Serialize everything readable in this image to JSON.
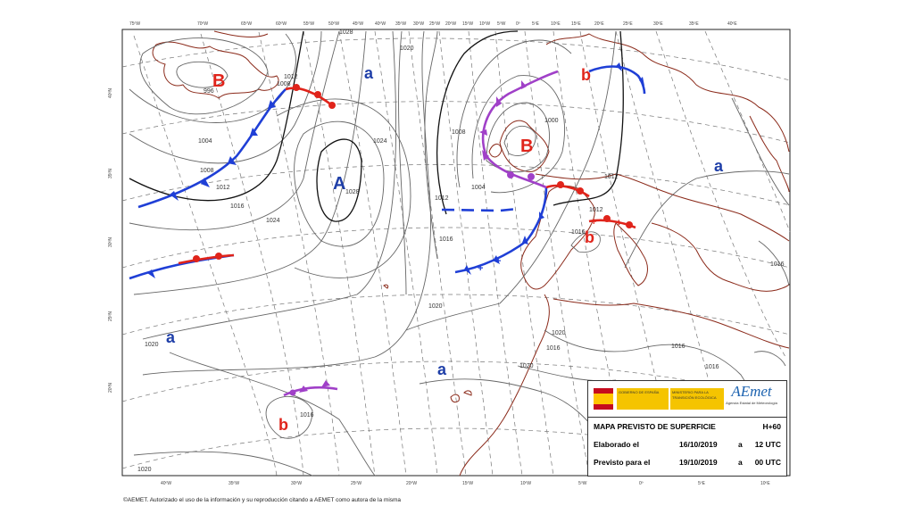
{
  "map": {
    "pressure_labels": [
      {
        "text": "B",
        "color": "#e0241b"
      },
      {
        "text": "a",
        "color": "#1f3fa8"
      },
      {
        "text": "A",
        "color": "#1f3fa8"
      },
      {
        "text": "B",
        "color": "#e0241b"
      },
      {
        "text": "b",
        "color": "#e0241b"
      },
      {
        "text": "a",
        "color": "#1f3fa8"
      },
      {
        "text": "b",
        "color": "#e0241b"
      },
      {
        "text": "a",
        "color": "#1f3fa8"
      },
      {
        "text": "a",
        "color": "#1f3fa8"
      },
      {
        "text": "b",
        "color": "#e0241b"
      }
    ],
    "isobar_labels": [
      "1012",
      "1008",
      "996",
      "1004",
      "1008",
      "1012",
      "1016",
      "1024",
      "1028",
      "1020",
      "1024",
      "1012",
      "1016",
      "1020",
      "1008",
      "1004",
      "1000",
      "1012",
      "1012",
      "1016",
      "1020",
      "1016",
      "1016",
      "1020",
      "1016",
      "1016",
      "1020",
      "1016",
      "1020",
      "1028"
    ],
    "longitude_labels": [
      "75ºW",
      "70ºW",
      "65ºW",
      "60ºW",
      "55ºW",
      "50ºW",
      "45ºW",
      "40ºW",
      "35ºW",
      "30ºW",
      "25ºW",
      "20ºW",
      "15ºW",
      "10ºW",
      "5ºW",
      "0º",
      "5ºE",
      "10ºE",
      "15ºE",
      "20ºE",
      "25ºE",
      "30ºE",
      "35ºE",
      "40ºE"
    ],
    "bottom_labels": [
      "40ºW",
      "35ºW",
      "30ºW",
      "25ºW",
      "20ºW",
      "15ºW",
      "10ºW",
      "5ºW",
      "0º",
      "5ºE",
      "10ºE"
    ],
    "latitude_labels": [
      "40ºN",
      "35ºN",
      "30ºN",
      "25ºN",
      "20ºN"
    ],
    "colors": {
      "cold_front": "#1f3fd6",
      "warm_front": "#e0241b",
      "occluded_front": "#a040c8",
      "coast": "#8b2a1a"
    }
  },
  "legend": {
    "gov_text": "GOBIERNO DE ESPAÑA",
    "ministry_text": "MINISTERIO PARA LA TRANSICIÓN ECOLÓGICA",
    "brand": "AEmet",
    "brand_sub": "Agencia Estatal de Meteorología",
    "title": "MAPA PREVISTO DE SUPERFICIE",
    "horizon": "H+60",
    "made_label": "Elaborado el",
    "made_date": "16/10/2019",
    "made_sep": "a",
    "made_time": "12 UTC",
    "valid_label": "Previsto para el",
    "valid_date": "19/10/2019",
    "valid_sep": "a",
    "valid_time": "00 UTC"
  },
  "footer": "©AEMET. Autorizado el uso de la información y su reproducción citando a AEMET como autora de la misma"
}
